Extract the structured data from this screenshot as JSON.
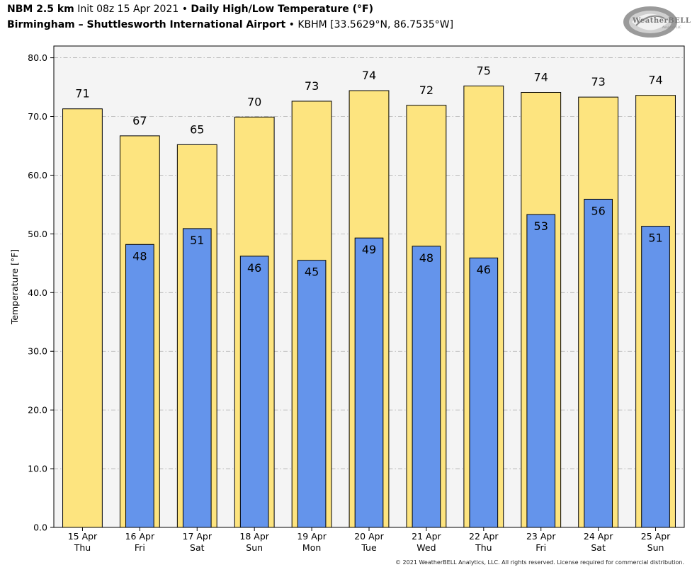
{
  "header": {
    "model": "NBM 2.5 km",
    "init": "Init 08z 15 Apr 2021",
    "bullet": "•",
    "product": "Daily High/Low Temperature (°F)",
    "station": "Birmingham – Shuttlesworth International Airport",
    "station_code": "KBHM [33.5629°N, 86.7535°W]"
  },
  "logo": {
    "text": "WeatherBELL",
    "sub": "Analytics LLC"
  },
  "copyright": "© 2021 WeatherBELL Analytics, LLC. All rights reserved. License required for commercial distribution.",
  "colors": {
    "high_bar": "#fde47f",
    "low_bar": "#6494eb",
    "plot_bg": "#f4f4f4",
    "grid": "#b0b0b0"
  },
  "chart_data": {
    "type": "bar",
    "ylabel": "Temperature [°F]",
    "ylim": [
      0,
      82
    ],
    "yticks": [
      0,
      10,
      20,
      30,
      40,
      50,
      60,
      70,
      80
    ],
    "ytick_labels": [
      "0.0",
      "10.0",
      "20.0",
      "30.0",
      "40.0",
      "50.0",
      "60.0",
      "70.0",
      "80.0"
    ],
    "grid": true,
    "categories": [
      [
        "15 Apr",
        "Thu"
      ],
      [
        "16 Apr",
        "Fri"
      ],
      [
        "17 Apr",
        "Sat"
      ],
      [
        "18 Apr",
        "Sun"
      ],
      [
        "19 Apr",
        "Mon"
      ],
      [
        "20 Apr",
        "Tue"
      ],
      [
        "21 Apr",
        "Wed"
      ],
      [
        "22 Apr",
        "Thu"
      ],
      [
        "23 Apr",
        "Fri"
      ],
      [
        "24 Apr",
        "Sat"
      ],
      [
        "25 Apr",
        "Sun"
      ]
    ],
    "series": [
      {
        "values": [
          71.3,
          66.7,
          65.2,
          69.9,
          72.6,
          74.4,
          71.9,
          75.2,
          74.1,
          73.3,
          73.6
        ],
        "labels": [
          "71",
          "67",
          "65",
          "70",
          "73",
          "74",
          "72",
          "75",
          "74",
          "73",
          "74"
        ]
      },
      {
        "values": [
          null,
          48.2,
          50.9,
          46.2,
          45.5,
          49.3,
          47.9,
          45.9,
          53.3,
          55.9,
          51.3
        ],
        "labels": [
          null,
          "48",
          "51",
          "46",
          "45",
          "49",
          "48",
          "46",
          "53",
          "56",
          "51"
        ]
      }
    ]
  }
}
